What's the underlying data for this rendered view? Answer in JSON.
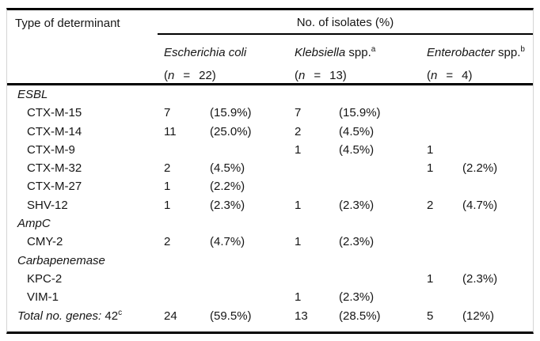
{
  "colors": {
    "text": "#161616",
    "rule": "#000000",
    "frame": "#d4d4d4",
    "background": "#ffffff"
  },
  "table": {
    "col1_header": "Type of determinant",
    "group_header": "No. of isolates (%)",
    "species": [
      {
        "name_italic": "Escherichia coli",
        "name_roman": "",
        "name_sup": "",
        "paren_open": "(",
        "n_label": "n",
        "equals": "=",
        "n_count": "22",
        "paren_close": ")"
      },
      {
        "name_italic": "Klebsiella",
        "name_roman": " spp.",
        "name_sup": "a",
        "paren_open": "(",
        "n_label": "n",
        "equals": "=",
        "n_count": "13",
        "paren_close": ")"
      },
      {
        "name_italic": "Enterobacter",
        "name_roman": " spp.",
        "name_sup": "b",
        "paren_open": "(",
        "n_label": "n",
        "equals": "=",
        "n_count": "4",
        "paren_close": ")"
      }
    ],
    "rows": [
      {
        "kind": "section",
        "label_italic": "ESBL",
        "label_roman": "",
        "label_sup": "",
        "indent": false,
        "cells": [
          "",
          "",
          "",
          "",
          "",
          ""
        ]
      },
      {
        "kind": "item",
        "label_italic": "",
        "label_roman": "CTX-M-15",
        "label_sup": "",
        "indent": true,
        "cells": [
          "7",
          "(15.9%)",
          "7",
          "(15.9%)",
          "",
          ""
        ]
      },
      {
        "kind": "item",
        "label_italic": "",
        "label_roman": "CTX-M-14",
        "label_sup": "",
        "indent": true,
        "cells": [
          "11",
          "(25.0%)",
          "2",
          "(4.5%)",
          "",
          ""
        ]
      },
      {
        "kind": "item",
        "label_italic": "",
        "label_roman": "CTX-M-9",
        "label_sup": "",
        "indent": true,
        "cells": [
          "",
          "",
          "1",
          "(4.5%)",
          "1",
          ""
        ]
      },
      {
        "kind": "item",
        "label_italic": "",
        "label_roman": "CTX-M-32",
        "label_sup": "",
        "indent": true,
        "cells": [
          "2",
          "(4.5%)",
          "",
          "",
          "1",
          "(2.2%)"
        ]
      },
      {
        "kind": "item",
        "label_italic": "",
        "label_roman": "CTX-M-27",
        "label_sup": "",
        "indent": true,
        "cells": [
          "1",
          "(2.2%)",
          "",
          "",
          "",
          ""
        ]
      },
      {
        "kind": "item",
        "label_italic": "",
        "label_roman": "SHV-12",
        "label_sup": "",
        "indent": true,
        "cells": [
          "1",
          "(2.3%)",
          "1",
          "(2.3%)",
          "2",
          "(4.7%)"
        ]
      },
      {
        "kind": "section",
        "label_italic": "AmpC",
        "label_roman": "",
        "label_sup": "",
        "indent": false,
        "cells": [
          "",
          "",
          "",
          "",
          "",
          ""
        ]
      },
      {
        "kind": "item",
        "label_italic": "",
        "label_roman": "CMY-2",
        "label_sup": "",
        "indent": true,
        "cells": [
          "2",
          "(4.7%)",
          "1",
          "(2.3%)",
          "",
          ""
        ]
      },
      {
        "kind": "section",
        "label_italic": "Carbapenemase",
        "label_roman": "",
        "label_sup": "",
        "indent": false,
        "cells": [
          "",
          "",
          "",
          "",
          "",
          ""
        ]
      },
      {
        "kind": "item",
        "label_italic": "",
        "label_roman": "KPC-2",
        "label_sup": "",
        "indent": true,
        "cells": [
          "",
          "",
          "",
          "",
          "1",
          "(2.3%)"
        ]
      },
      {
        "kind": "item",
        "label_italic": "",
        "label_roman": "VIM-1",
        "label_sup": "",
        "indent": true,
        "cells": [
          "",
          "",
          "1",
          "(2.3%)",
          "",
          ""
        ]
      },
      {
        "kind": "total",
        "label_italic": "Total no. genes:",
        "label_roman": " 42",
        "label_sup": "c",
        "indent": false,
        "cells": [
          "24",
          "(59.5%)",
          "13",
          "(28.5%)",
          "5",
          "(12%)"
        ]
      }
    ]
  }
}
